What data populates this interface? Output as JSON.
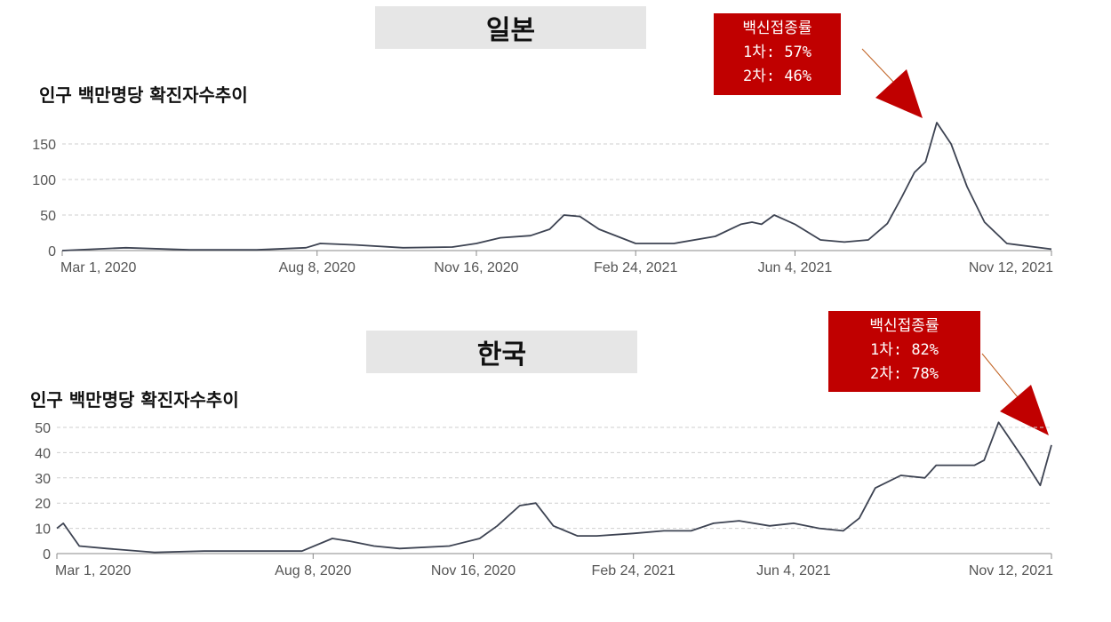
{
  "chart_data": [
    {
      "type": "line",
      "title": "일본",
      "subtitle": "인구 백만명당 확진자수추이",
      "x_ticks": [
        "Mar 1, 2020",
        "Aug 8, 2020",
        "Nov 16, 2020",
        "Feb 24, 2021",
        "Jun 4, 2021",
        "Nov 12, 2021"
      ],
      "ylim": [
        0,
        150
      ],
      "y_ticks": [
        0,
        50,
        100,
        150
      ],
      "grid": true,
      "callout": {
        "line1": "백신접종률",
        "line2": "1차: 57%",
        "line3": "2차: 46%"
      },
      "series": [
        {
          "color": "#3d4352",
          "x": [
            "2020-03-01",
            "2020-04-10",
            "2020-05-20",
            "2020-07-01",
            "2020-08-01",
            "2020-08-10",
            "2020-09-01",
            "2020-10-01",
            "2020-11-01",
            "2020-11-16",
            "2020-12-01",
            "2020-12-20",
            "2021-01-01",
            "2021-01-10",
            "2021-01-20",
            "2021-02-01",
            "2021-02-24",
            "2021-03-20",
            "2021-04-15",
            "2021-05-01",
            "2021-05-08",
            "2021-05-14",
            "2021-05-22",
            "2021-06-04",
            "2021-06-20",
            "2021-07-05",
            "2021-07-20",
            "2021-08-01",
            "2021-08-10",
            "2021-08-18",
            "2021-08-25",
            "2021-09-01",
            "2021-09-10",
            "2021-09-20",
            "2021-10-01",
            "2021-10-15",
            "2021-11-12"
          ],
          "y": [
            0,
            4,
            1,
            1,
            4,
            10,
            8,
            4,
            5,
            10,
            18,
            21,
            30,
            50,
            48,
            30,
            10,
            10,
            20,
            37,
            40,
            37,
            50,
            37,
            15,
            12,
            15,
            38,
            75,
            110,
            125,
            180,
            150,
            90,
            40,
            10,
            2
          ]
        }
      ]
    },
    {
      "type": "line",
      "title": "한국",
      "subtitle": "인구 백만명당 확진자수추이",
      "x_ticks": [
        "Mar 1, 2020",
        "Aug 8, 2020",
        "Nov 16, 2020",
        "Feb 24, 2021",
        "Jun 4, 2021",
        "Nov 12, 2021"
      ],
      "ylim": [
        0,
        50
      ],
      "y_ticks": [
        0,
        10,
        20,
        30,
        40,
        50
      ],
      "grid": true,
      "callout": {
        "line1": "백신접종률",
        "line2": "1차: 82%",
        "line3": "2차: 78%"
      },
      "series": [
        {
          "color": "#3d4352",
          "x": [
            "2020-03-01",
            "2020-03-05",
            "2020-03-15",
            "2020-04-01",
            "2020-05-01",
            "2020-06-01",
            "2020-07-01",
            "2020-08-01",
            "2020-08-20",
            "2020-08-30",
            "2020-09-15",
            "2020-10-01",
            "2020-11-01",
            "2020-11-20",
            "2020-12-01",
            "2020-12-15",
            "2020-12-25",
            "2021-01-05",
            "2021-01-20",
            "2021-02-01",
            "2021-02-24",
            "2021-03-15",
            "2021-04-01",
            "2021-04-15",
            "2021-05-01",
            "2021-05-20",
            "2021-06-04",
            "2021-06-20",
            "2021-07-05",
            "2021-07-15",
            "2021-07-25",
            "2021-08-10",
            "2021-08-25",
            "2021-09-01",
            "2021-09-15",
            "2021-09-25",
            "2021-10-01",
            "2021-10-10",
            "2021-10-25",
            "2021-11-05",
            "2021-11-12"
          ],
          "y": [
            10,
            12,
            3,
            2,
            0.5,
            1,
            1,
            1,
            6,
            5,
            3,
            2,
            3,
            6,
            11,
            19,
            20,
            11,
            7,
            7,
            8,
            9,
            9,
            12,
            13,
            11,
            12,
            10,
            9,
            14,
            26,
            31,
            30,
            35,
            35,
            35,
            37,
            52,
            38,
            27,
            43
          ]
        }
      ]
    }
  ]
}
